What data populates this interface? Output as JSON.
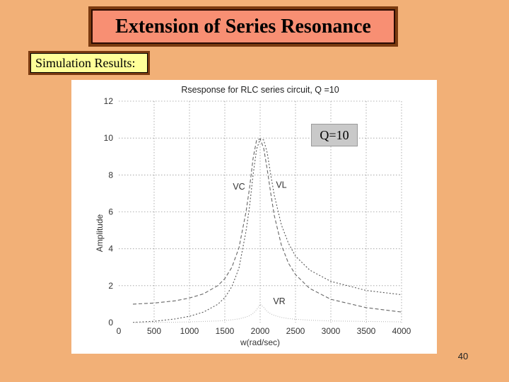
{
  "slide": {
    "title": "Extension of Series Resonance",
    "subtitle": "Simulation Results:",
    "q_label": "Q=10",
    "page_number": "40"
  },
  "colors": {
    "background": "#f2b077",
    "title_fill": "#f88f73",
    "title_border": "#7a3a10",
    "label_fill": "#ffff99",
    "q_label_fill": "#c9c9c9"
  },
  "chart_data": {
    "type": "line",
    "title": "Rsesponse for RLC series circuit, Q =10",
    "xlabel": "w(rad/sec)",
    "ylabel": "Amplitude",
    "xlim": [
      0,
      4000
    ],
    "ylim": [
      0,
      12
    ],
    "xticks": [
      0,
      500,
      1000,
      1500,
      2000,
      2500,
      3000,
      3500,
      4000
    ],
    "yticks": [
      0,
      2,
      4,
      6,
      8,
      10,
      12
    ],
    "grid": true,
    "annotations": [
      {
        "text": "VC",
        "x": 1700,
        "y": 7.2
      },
      {
        "text": "VL",
        "x": 2300,
        "y": 7.3
      },
      {
        "text": "VR",
        "x": 2270,
        "y": 1.0
      }
    ],
    "series": [
      {
        "x": [
          200,
          500,
          800,
          1000,
          1200,
          1400,
          1500,
          1600,
          1700,
          1800,
          1850,
          1900,
          1950,
          2000,
          2050,
          2100,
          2150,
          2200,
          2300,
          2400,
          2500,
          2700,
          3000,
          3500,
          4000
        ],
        "y": [
          1.0,
          1.06,
          1.18,
          1.33,
          1.56,
          2.0,
          2.38,
          3.0,
          4.05,
          6.0,
          7.3,
          8.9,
          9.9,
          9.95,
          9.45,
          8.3,
          7.0,
          5.8,
          4.2,
          3.22,
          2.6,
          1.85,
          1.26,
          0.81,
          0.57
        ]
      },
      {
        "x": [
          200,
          500,
          800,
          1000,
          1200,
          1400,
          1500,
          1600,
          1700,
          1800,
          1850,
          1900,
          1950,
          2000,
          2050,
          2100,
          2150,
          2200,
          2300,
          2400,
          2500,
          2700,
          3000,
          3500,
          4000
        ],
        "y": [
          0.01,
          0.07,
          0.2,
          0.34,
          0.57,
          0.99,
          1.35,
          1.95,
          2.95,
          4.95,
          6.3,
          8.0,
          9.4,
          9.95,
          9.9,
          9.2,
          8.0,
          6.9,
          5.3,
          4.3,
          3.6,
          2.85,
          2.23,
          1.74,
          1.51
        ]
      },
      {
        "x": [
          200,
          500,
          800,
          1000,
          1200,
          1400,
          1500,
          1600,
          1700,
          1800,
          1850,
          1900,
          1950,
          2000,
          2050,
          2100,
          2150,
          2200,
          2300,
          2400,
          2500,
          2700,
          3000,
          3500,
          4000
        ],
        "y": [
          0.0,
          0.01,
          0.02,
          0.04,
          0.06,
          0.09,
          0.11,
          0.15,
          0.2,
          0.3,
          0.38,
          0.5,
          0.69,
          1.0,
          0.82,
          0.6,
          0.47,
          0.39,
          0.28,
          0.22,
          0.18,
          0.13,
          0.09,
          0.06,
          0.04
        ]
      }
    ]
  }
}
